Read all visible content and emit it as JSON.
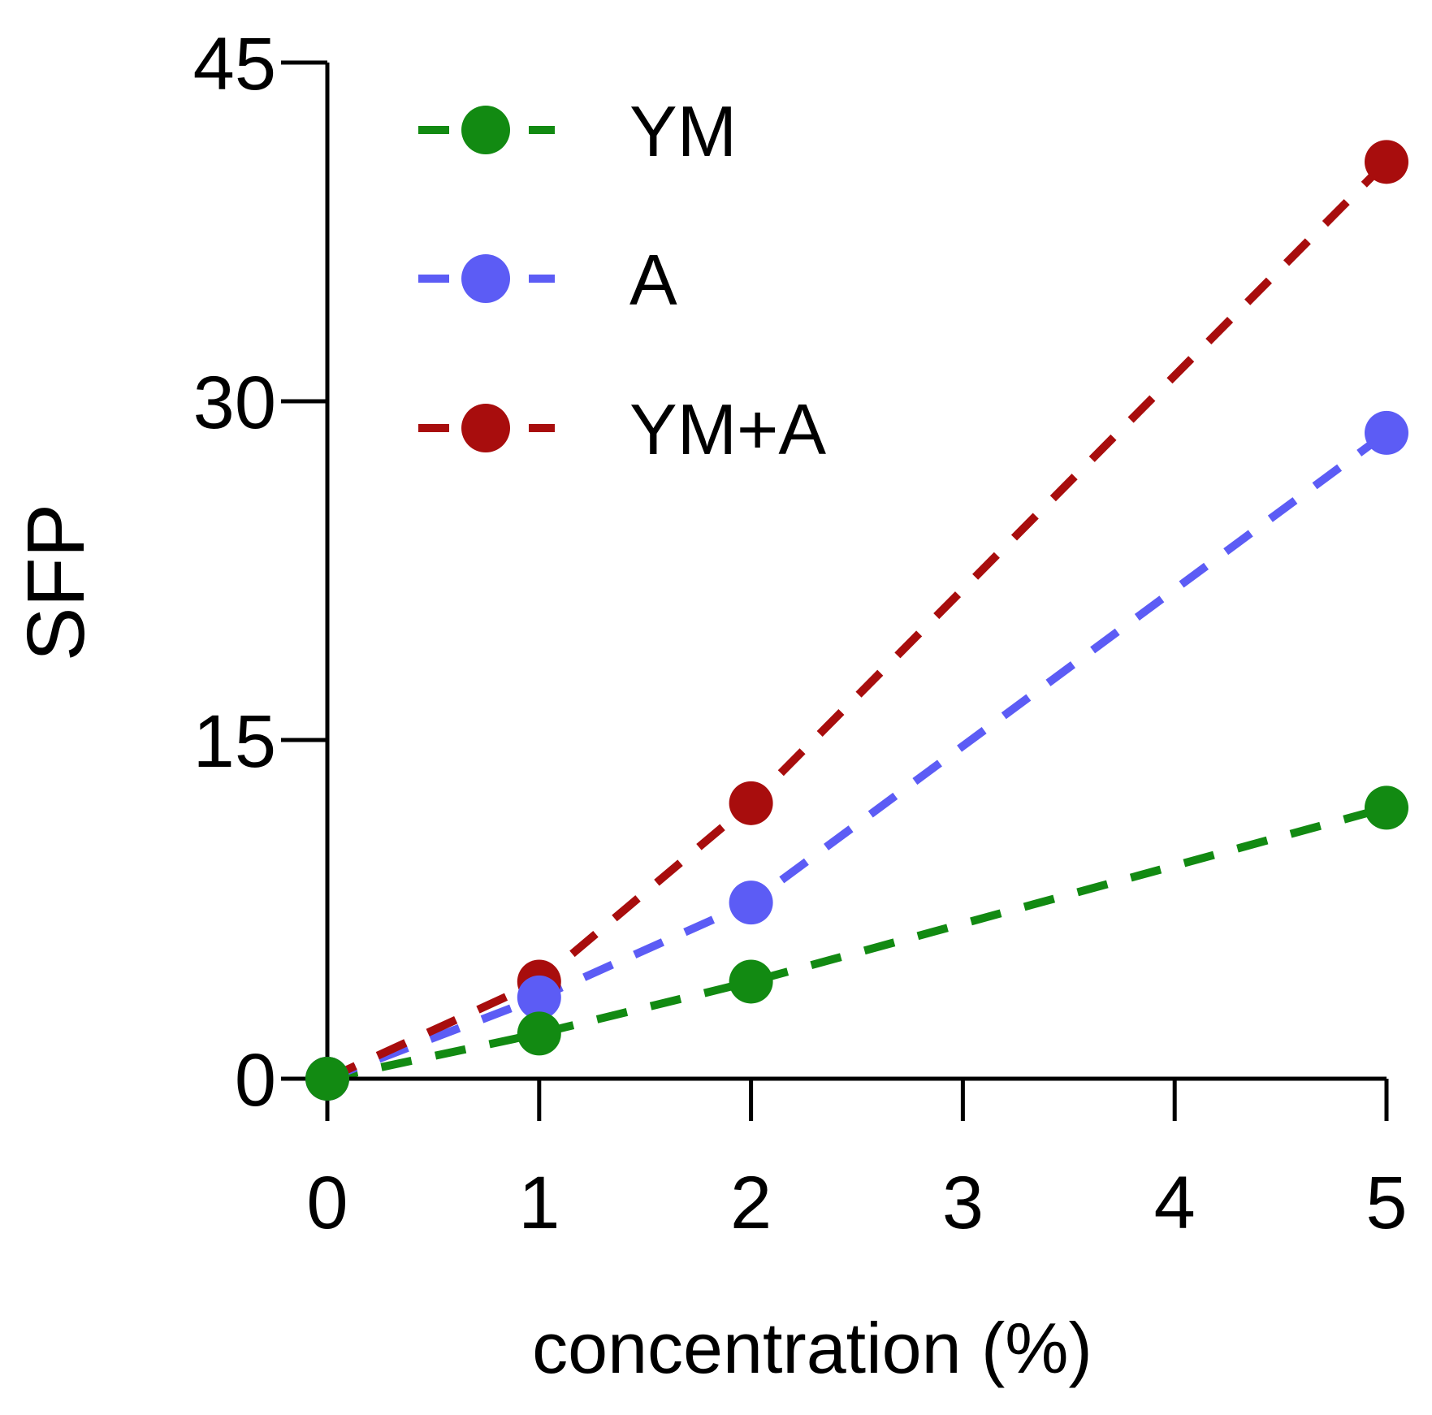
{
  "chart_data": {
    "type": "line",
    "title": "",
    "xlabel": "concentration (%)",
    "ylabel": "SFP",
    "xlim": [
      0,
      5
    ],
    "ylim": [
      0,
      45
    ],
    "x_ticks": [
      0,
      1,
      2,
      3,
      4,
      5
    ],
    "y_ticks": [
      0,
      15,
      30,
      45
    ],
    "x_tick_labels": [
      "0",
      "1",
      "2",
      "3",
      "4",
      "5"
    ],
    "y_tick_labels": [
      "0",
      "15",
      "30",
      "45"
    ],
    "grid": false,
    "legend_position": "top-left",
    "line_style": "dashed",
    "series": [
      {
        "name": "YM",
        "color": "#128a12",
        "x": [
          0,
          1,
          2,
          5
        ],
        "y": [
          0,
          2,
          4.3,
          12
        ]
      },
      {
        "name": "A",
        "color": "#5c5cf5",
        "x": [
          0,
          1,
          2,
          5
        ],
        "y": [
          0,
          3.6,
          7.8,
          28.6
        ]
      },
      {
        "name": "YM+A",
        "color": "#a80d0d",
        "x": [
          0,
          1,
          2,
          5
        ],
        "y": [
          0,
          4.3,
          12.2,
          40.6
        ]
      }
    ]
  }
}
